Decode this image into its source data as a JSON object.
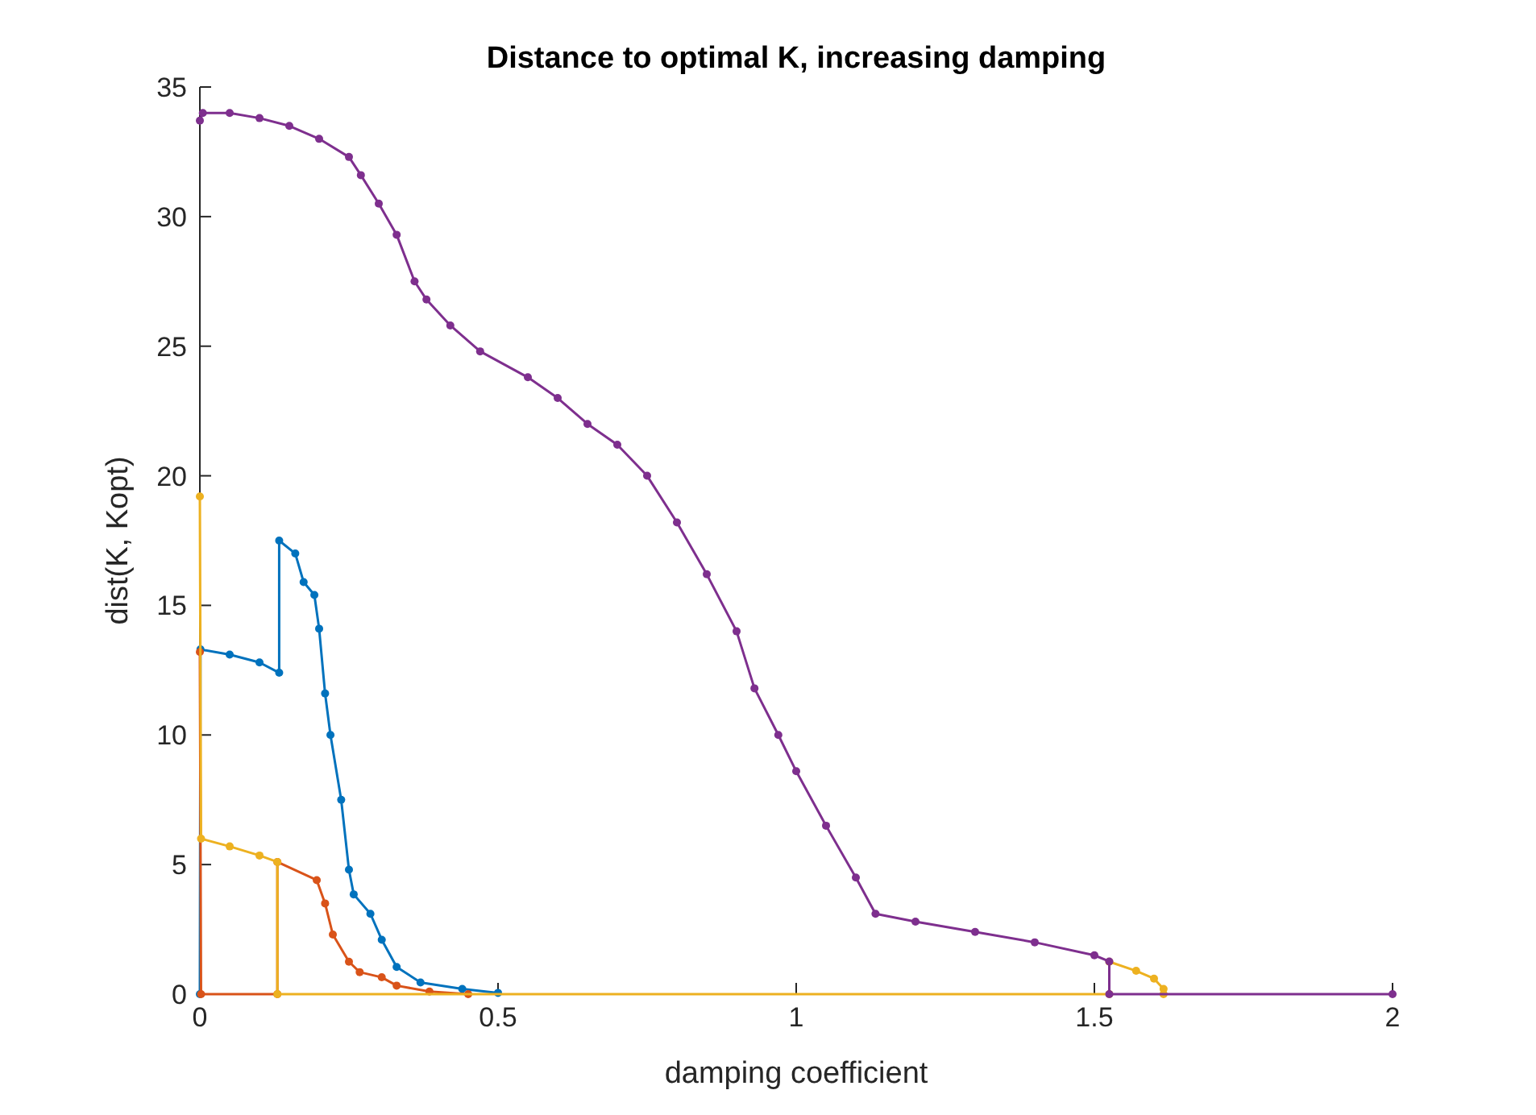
{
  "chart_data": {
    "type": "line",
    "title": "Distance to optimal K, increasing damping",
    "xlabel": "damping coefficient",
    "ylabel": "dist(K, Kopt)",
    "xlim": [
      0,
      2
    ],
    "ylim": [
      0,
      35
    ],
    "xticks": [
      0,
      0.5,
      1,
      1.5,
      2
    ],
    "yticks": [
      0,
      5,
      10,
      15,
      20,
      25,
      30,
      35
    ],
    "marker": "circle",
    "line_style": "solid",
    "series": [
      {
        "color": "#0072bd",
        "x": [
          0,
          0.001,
          0.05,
          0.1,
          0.133,
          0.133,
          0.16,
          0.174,
          0.192,
          0.2,
          0.21,
          0.219,
          0.237,
          0.25,
          0.258,
          0.286,
          0.305,
          0.33,
          0.37,
          0.44,
          0.5
        ],
        "values": [
          0,
          13.3,
          13.1,
          12.8,
          12.4,
          17.5,
          17.0,
          15.9,
          15.4,
          14.1,
          11.6,
          10.0,
          7.5,
          4.8,
          3.85,
          3.1,
          2.1,
          1.05,
          0.45,
          0.2,
          0.05
        ]
      },
      {
        "color": "#d95319",
        "x": [
          0,
          0.002,
          0.13,
          0.13,
          0.196,
          0.21,
          0.223,
          0.25,
          0.268,
          0.305,
          0.33,
          0.385,
          0.45
        ],
        "values": [
          13.2,
          0,
          0,
          5.1,
          4.4,
          3.5,
          2.3,
          1.25,
          0.85,
          0.65,
          0.33,
          0.1,
          0
        ]
      },
      {
        "color": "#edb120",
        "x": [
          0,
          0.002,
          0.05,
          0.1,
          0.13,
          0.13,
          1.525,
          1.525,
          1.57,
          1.6,
          1.616,
          1.616
        ],
        "values": [
          19.2,
          6.0,
          5.7,
          5.35,
          5.1,
          0,
          0,
          1.25,
          0.9,
          0.6,
          0.2,
          0
        ]
      },
      {
        "color": "#7e2f8e",
        "x": [
          0,
          0.005,
          0.05,
          0.1,
          0.15,
          0.2,
          0.25,
          0.27,
          0.3,
          0.33,
          0.36,
          0.38,
          0.42,
          0.47,
          0.55,
          0.6,
          0.65,
          0.7,
          0.75,
          0.8,
          0.85,
          0.9,
          0.93,
          0.97,
          1.0,
          1.05,
          1.1,
          1.133,
          1.2,
          1.3,
          1.4,
          1.5,
          1.525,
          1.525,
          2
        ],
        "values": [
          33.7,
          34.0,
          34.0,
          33.8,
          33.5,
          33.0,
          32.3,
          31.6,
          30.5,
          29.3,
          27.5,
          26.8,
          25.8,
          24.8,
          23.8,
          23.0,
          22.0,
          21.2,
          20.0,
          18.2,
          16.2,
          14.0,
          11.8,
          10.0,
          8.6,
          6.5,
          4.5,
          3.1,
          2.8,
          2.4,
          2.0,
          1.5,
          1.26,
          0,
          0
        ]
      }
    ]
  }
}
